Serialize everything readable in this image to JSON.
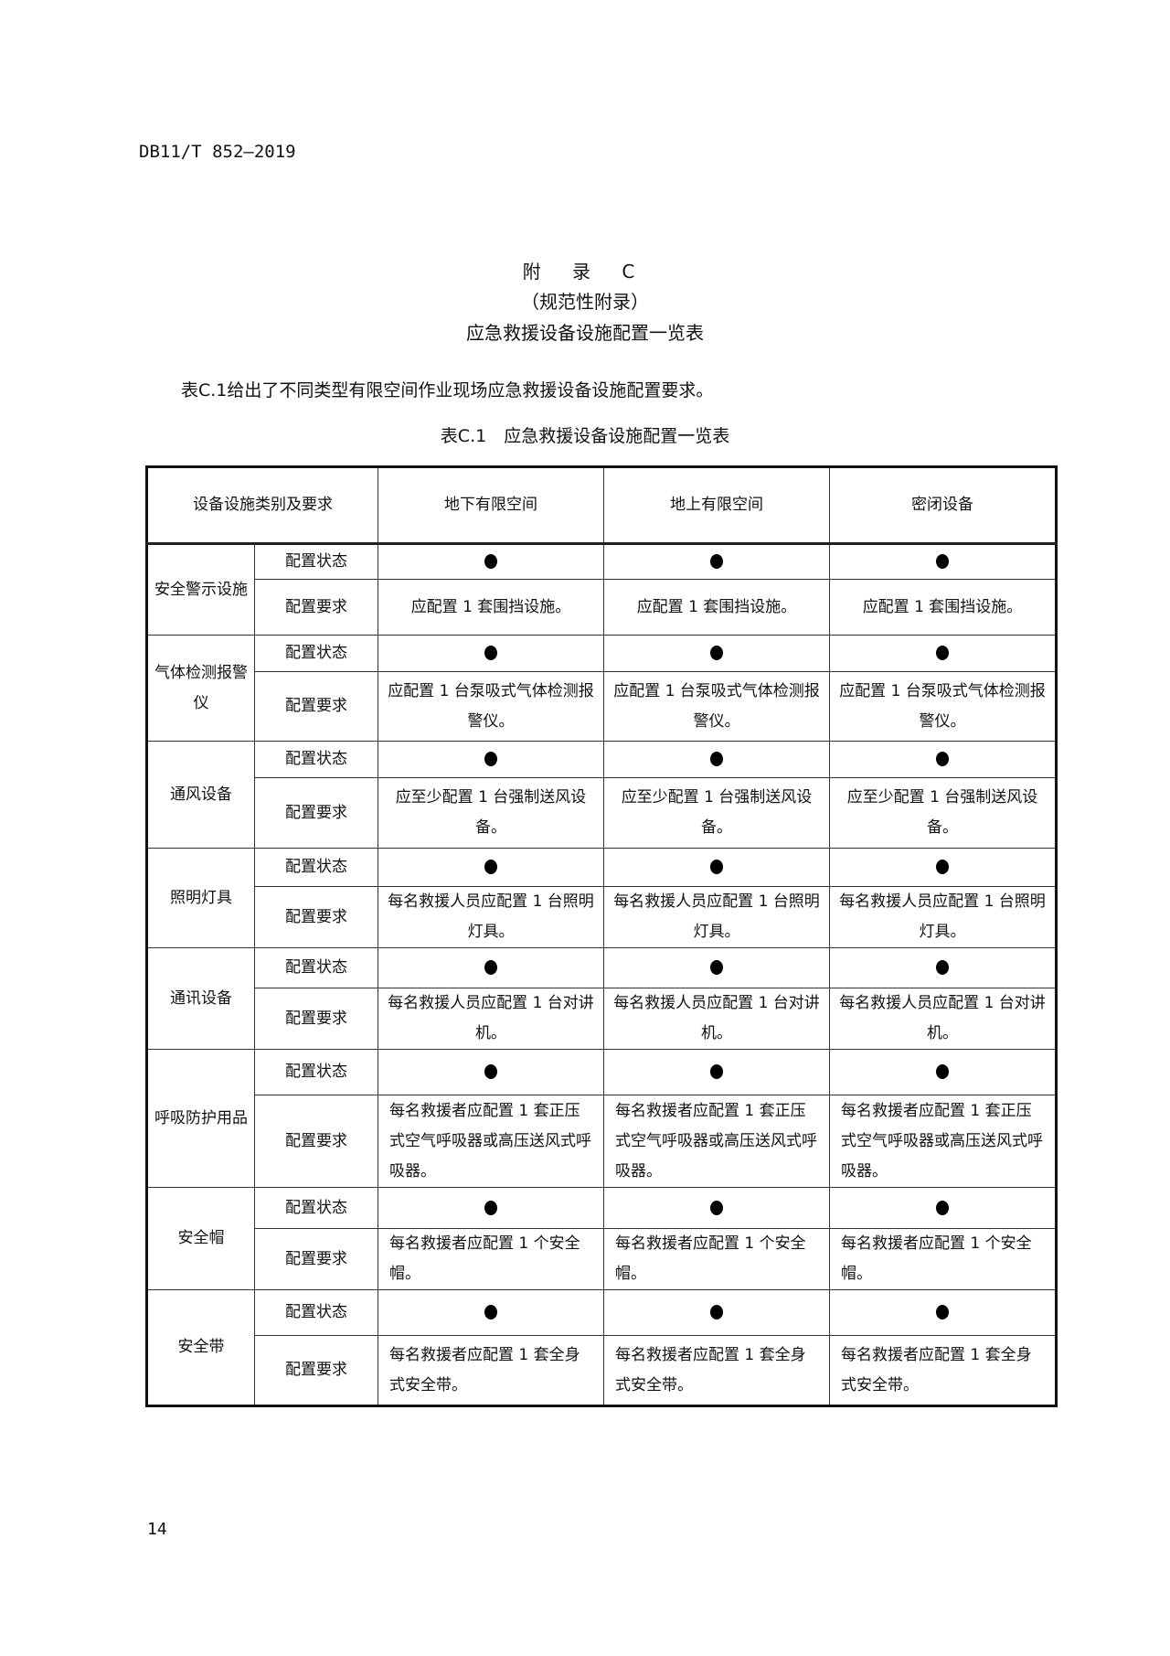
{
  "header": {
    "doc_code": "DB11/T 852—2019"
  },
  "title": {
    "line1": "附 录 C",
    "line2": "（规范性附录）",
    "line3": "应急救援设备设施配置一览表"
  },
  "intro": "表C.1给出了不同类型有限空间作业现场应急救援设备设施配置要求。",
  "table_caption": "表C.1　应急救援设备设施配置一览表",
  "table": {
    "headers": [
      "设备设施类别及要求",
      "地下有限空间",
      "地上有限空间",
      "密闭设备"
    ],
    "status_label": "配置状态",
    "requirement_label": "配置要求",
    "status_mark": "●",
    "rows": [
      {
        "category": "安全警示设施",
        "requirements": [
          "应配置 1 套围挡设施。",
          "应配置 1 套围挡设施。",
          "应配置 1 套围挡设施。"
        ]
      },
      {
        "category": "气体检测报警仪",
        "requirements": [
          "应配置 1 台泵吸式气体检测报警仪。",
          "应配置 1 台泵吸式气体检测报警仪。",
          "应配置 1 台泵吸式气体检测报警仪。"
        ]
      },
      {
        "category": "通风设备",
        "requirements": [
          "应至少配置 1 台强制送风设备。",
          "应至少配置 1 台强制送风设备。",
          "应至少配置 1 台强制送风设备。"
        ]
      },
      {
        "category": "照明灯具",
        "requirements": [
          "每名救援人员应配置 1 台照明灯具。",
          "每名救援人员应配置 1 台照明灯具。",
          "每名救援人员应配置 1 台照明灯具。"
        ]
      },
      {
        "category": "通讯设备",
        "requirements": [
          "每名救援人员应配置 1 台对讲机。",
          "每名救援人员应配置 1 台对讲机。",
          "每名救援人员应配置 1 台对讲机。"
        ]
      },
      {
        "category": "呼吸防护用品",
        "requirements": [
          "每名救援者应配置 1 套正压式空气呼吸器或高压送风式呼吸器。",
          "每名救援者应配置 1 套正压式空气呼吸器或高压送风式呼吸器。",
          "每名救援者应配置 1 套正压式空气呼吸器或高压送风式呼吸器。"
        ]
      },
      {
        "category": "安全帽",
        "requirements": [
          "每名救援者应配置 1 个安全帽。",
          "每名救援者应配置 1 个安全帽。",
          "每名救援者应配置 1 个安全帽。"
        ]
      },
      {
        "category": "安全带",
        "requirements": [
          "每名救援者应配置 1 套全身式安全带。",
          "每名救援者应配置 1 套全身式安全带。",
          "每名救援者应配置 1 套全身式安全带。"
        ]
      }
    ]
  },
  "footer": {
    "page_number": "14"
  }
}
